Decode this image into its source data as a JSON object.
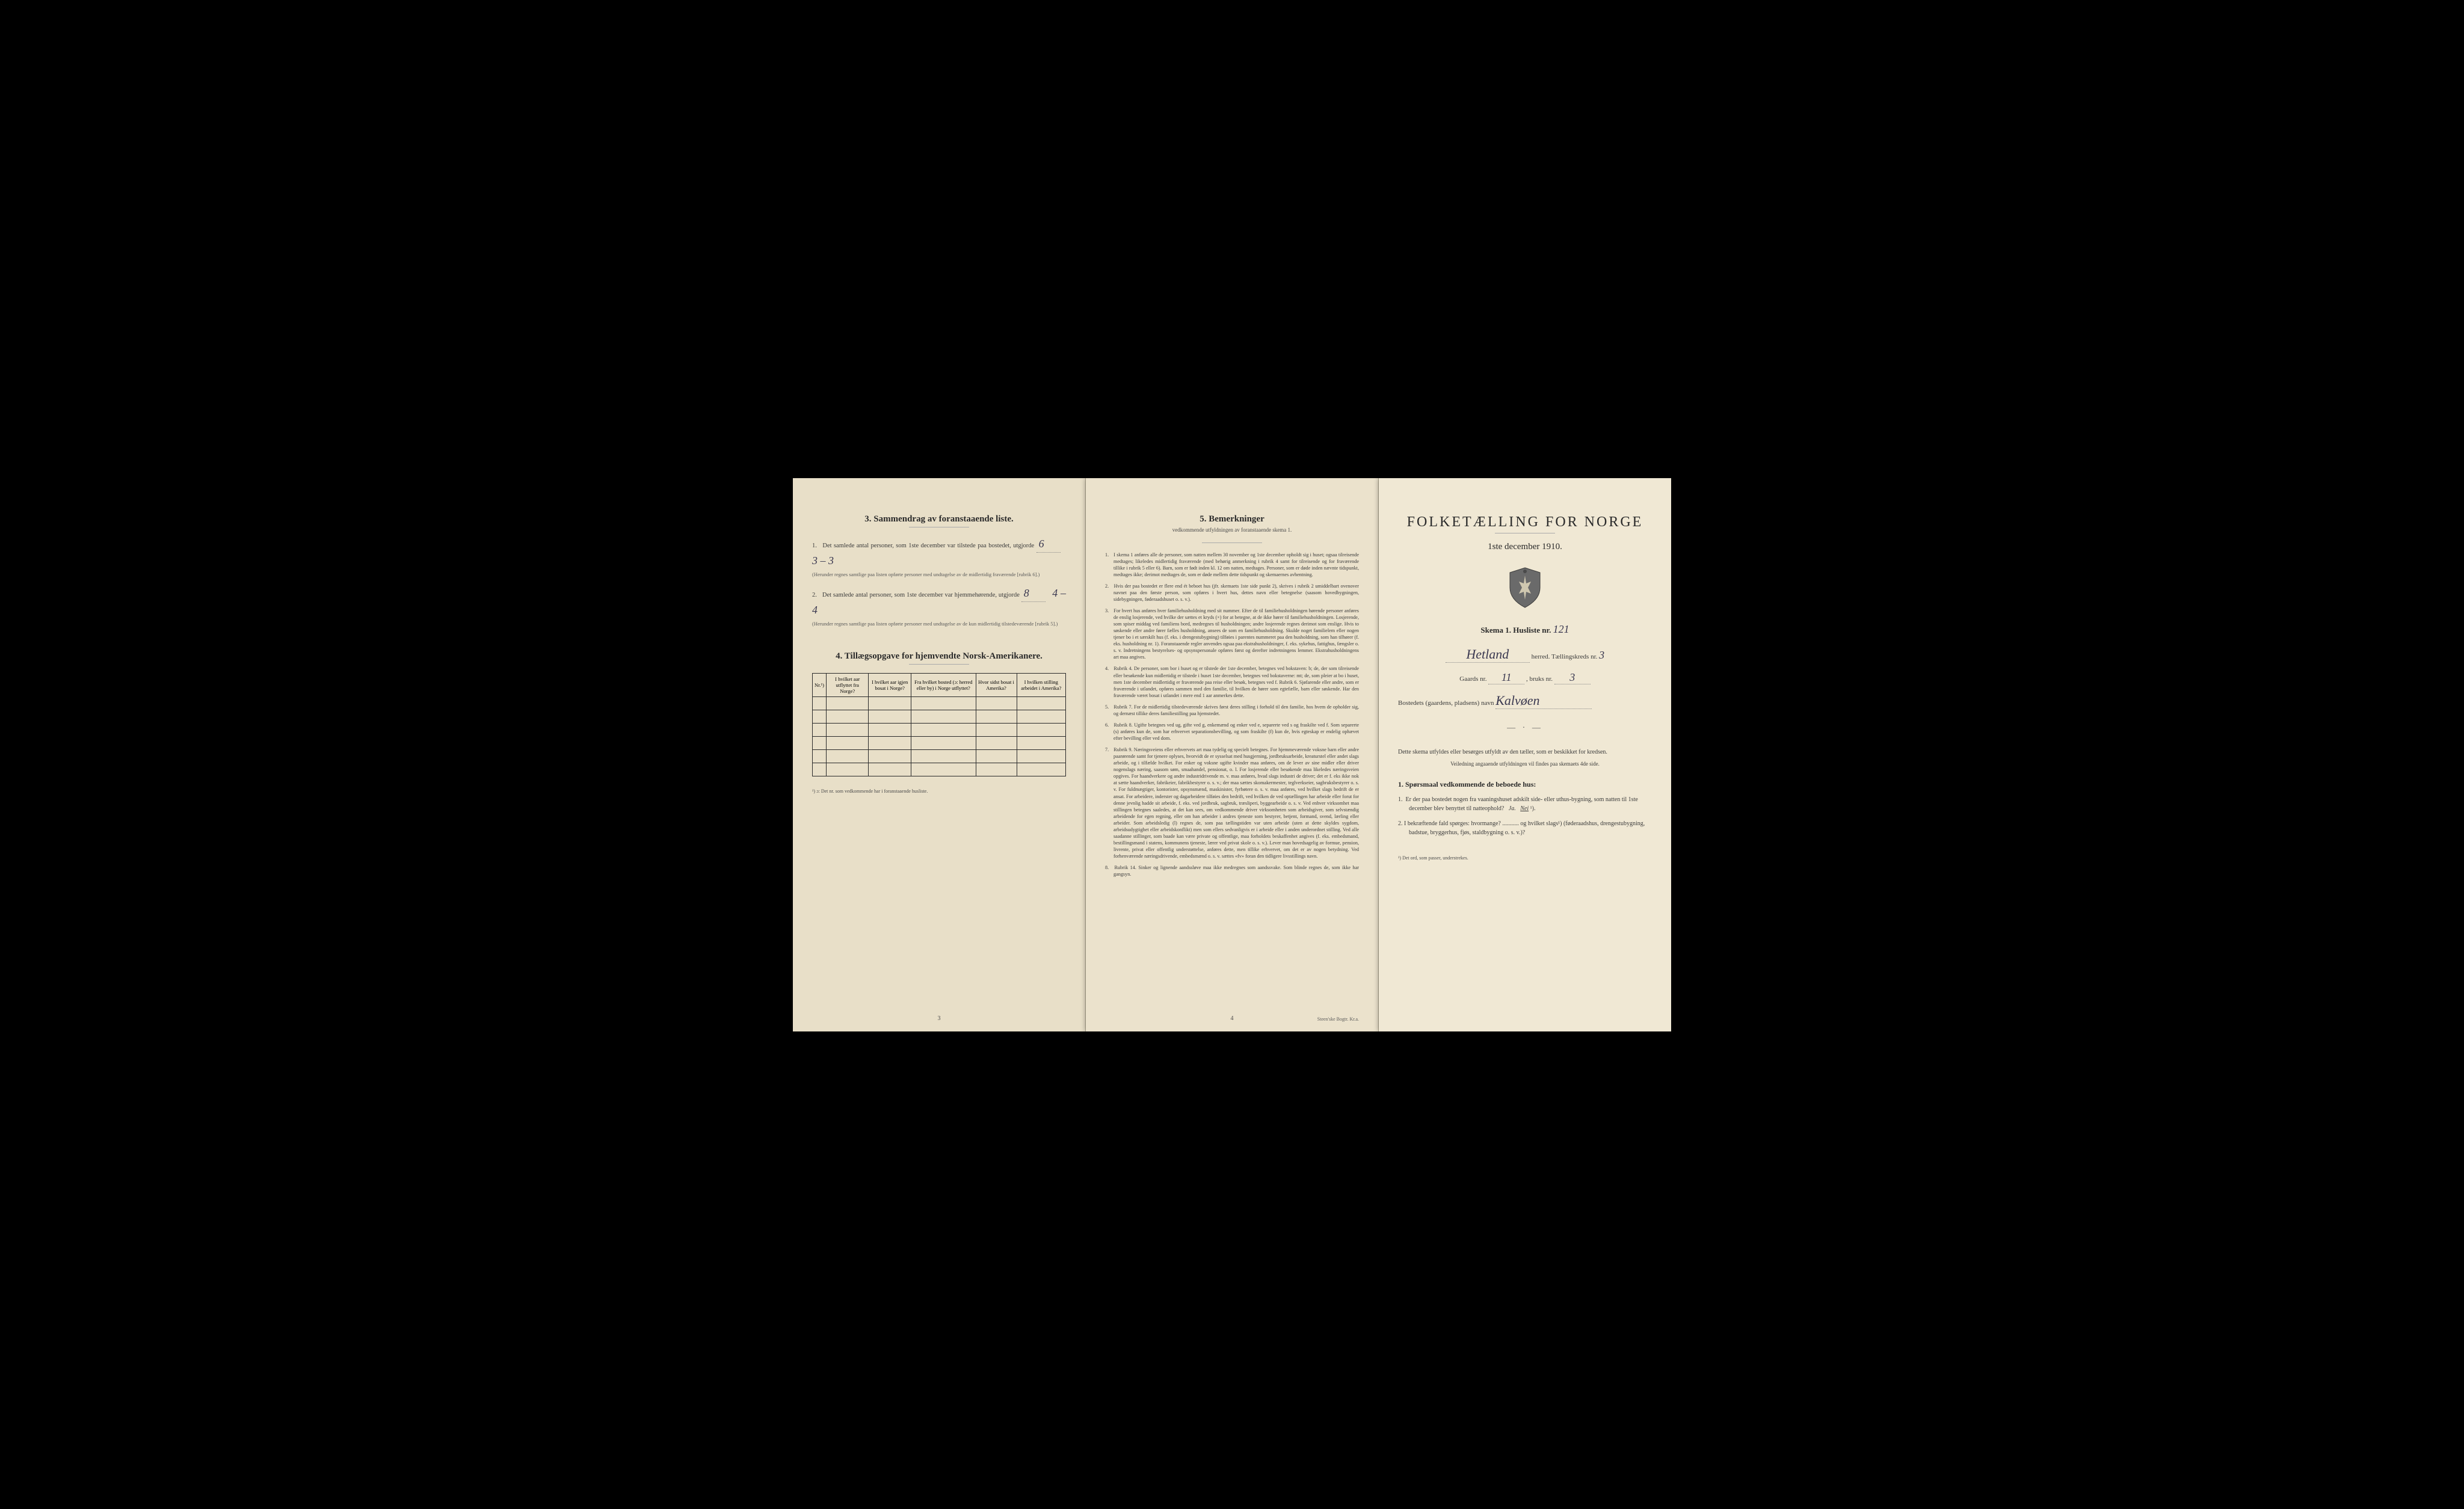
{
  "left": {
    "section3": {
      "title": "3.   Sammendrag av foranstaaende liste.",
      "item1_text": "Det samlede antal personer, som 1ste december var tilstede paa bostedet, utgjorde",
      "item1_value": "6",
      "item1_mf": "3 – 3",
      "item1_note": "(Herunder regnes samtlige paa listen opførte personer med undtagelse av de midlertidig fraværende [rubrik 6].)",
      "item2_text": "Det samlede antal personer, som 1ste december var hjemmehørende, utgjorde",
      "item2_value": "8",
      "item2_mf": "4 – 4",
      "item2_note": "(Herunder regnes samtlige paa listen opførte personer med undtagelse av de kun midlertidig tilstedeværende [rubrik 5].)"
    },
    "section4": {
      "title": "4.   Tillægsopgave for hjemvendte Norsk-Amerikanere.",
      "columns": [
        "Nr.¹)",
        "I hvilket aar utflyttet fra Norge?",
        "I hvilket aar igjen bosat i Norge?",
        "Fra hvilket bosted (ɔ: herred eller by) i Norge utflyttet?",
        "Hvor sidst bosat i Amerika?",
        "I hvilken stilling arbeidet i Amerika?"
      ],
      "empty_rows": 6,
      "footnote": "¹) ɔ: Det nr. som vedkommende har i foranstaaende husliste."
    },
    "page_num": "3"
  },
  "middle": {
    "title": "5.   Bemerkninger",
    "subtitle": "vedkommende utfyldningen av foranstaaende skema 1.",
    "items": [
      {
        "n": "1.",
        "text": "I skema 1 anføres alle de personer, som natten mellem 30 november og 1ste december opholdt sig i huset; ogsaa tilreisende medtages; likeledes midlertidig fraværende (med behørig anmerkning i rubrik 4 samt for tilreisende og for fraværende tillike i rubrik 5 eller 6). Barn, som er født inden kl. 12 om natten, medtages. Personer, som er døde inden nævnte tidspunkt, medtages ikke; derimot medtages de, som er døde mellem dette tidspunkt og skemaernes avhentning."
      },
      {
        "n": "2.",
        "text": "Hvis der paa bostedet er flere end ét beboet hus (jfr. skemaets 1ste side punkt 2), skrives i rubrik 2 umiddelbart ovenover navnet paa den første person, som opføres i hvert hus, dettes navn eller betegnelse (saasom hovedbygningen, sidebygningen, føderaadshuset o. s. v.)."
      },
      {
        "n": "3.",
        "text": "For hvert hus anføres hver familiehusholdning med sit nummer. Efter de til familiehusholdningen hørende personer anføres de enslig losjerende, ved hvilke der sættes et kryds (×) for at betegne, at de ikke hører til familiehusholdningen. Losjerende, som spiser middag ved familiens bord, medregnes til husholdningen; andre losjerende regnes derimot som enslige. Hvis to søskende eller andre fører fælles husholdning, ansees de som en familiehusholdning. Skulde noget familielem eller nogen tjener bo i et særskilt hus (f. eks. i drengestubygning) tilføies i parentes nummeret paa den husholdning, som han tilhører (f. eks. husholdning nr. 1).\nForanstaaende regler anvendes ogsaa paa ekstrahusholdninger, f. eks. sykehus, fattighus, fængsler o. s. v. Indretningens bestyrelses- og opsynspersonale opføres først og derefter indretningens lemmer. Ekstrahusholdningens art maa angives."
      },
      {
        "n": "4.",
        "text": "Rubrik 4. De personer, som bor i huset og er tilstede der 1ste december, betegnes ved bokstaven: b; de, der som tilreisende eller besøkende kun midlertidig er tilstede i huset 1ste december, betegnes ved bokstaverne: mt; de, som pleier at bo i huset, men 1ste december midlertidig er fraværende paa reise eller besøk, betegnes ved f.\nRubrik 6. Sjøfarende eller andre, som er fraværende i utlandet, opføres sammen med den familie, til hvilken de hører som egtefælle, barn eller søskende.\nHar den fraværende været bosat i utlandet i mere end 1 aar anmerkes dette."
      },
      {
        "n": "5.",
        "text": "Rubrik 7. For de midlertidig tilstedeværende skrives først deres stilling i forhold til den familie, hos hvem de opholder sig, og dernæst tillike deres familiestilling paa hjemstedet."
      },
      {
        "n": "6.",
        "text": "Rubrik 8. Ugifte betegnes ved ug, gifte ved g, enkemænd og enker ved e, separerte ved s og fraskilte ved f. Som separerte (s) anføres kun de, som har erhvervet separationsbevilling, og som fraskilte (f) kun de, hvis egteskap er endelig ophævet efter bevilling eller ved dom."
      },
      {
        "n": "7.",
        "text": "Rubrik 9. Næringsveiens eller erhvervets art maa tydelig og specielt betegnes.\nFor hjemmeværende voksne barn eller andre paarørende samt for tjenere oplyses, hvorvidt de er sysselsat med husgjerning, jordbruksarbeide, kreaturstel eller andet slags arbeide, og i tilfælde hvilket. For enker og voksne ugifte kvinder maa anføres, om de lever av sine midler eller driver nogenslags næring, saasom søm, smaahandel, pensionat, o. l.\nFor losjerende eller besøkende maa likeledes næringsveien opgives.\nFor haandverkere og andre industridrivende m. v. maa anføres, hvad slags industri de driver; det er f. eks ikke nok at sætte haandverker, fabrikeier, fabrikbestyrer o. s. v.; der maa sættes skomakermester, teglverkseier, sagbruksbestyrer o. s. v.\nFor fuldmægtiger, kontorister, opsynsmænd, maskinister, fyrbøtere o. s. v. maa anføres, ved hvilket slags bedrift de er ansat.\nFor arbeidere, inderster og dagarbeidere tilføies den bedrift, ved hvilken de ved optællingen har arbeide eller forut for denne jevnlig hadde sit arbeide, f. eks. ved jordbruk, sagbruk, træsliperi, byggearbeide o. s. v.\nVed enhver virksomhet maa stillingen betegnes saaledes, at det kan sees, om vedkommende driver virksomheten som arbeidsgiver, som selvstændig arbeidende for egen regning, eller om han arbeider i andres tjeneste som bestyrer, betjent, formand, svend, lærling eller arbeider.\nSom arbeidsledig (l) regnes de, som paa tællingstiden var uten arbeide (uten at dette skyldes sygdom, arbeidsudygtighet eller arbeidskonflikt) men som ellers sedvanligvis er i arbeide eller i anden underordnet stilling.\nVed alle saadanne stillinger, som baade kan være private og offentlige, maa forholdets beskaffenhet angives (f. eks. embedsmand, bestillingsmand i statens, kommunens tjeneste, lærer ved privat skole o. s. v.).\nLever man hovedsagelig av formue, pension, livrente, privat eller offentlig understøttelse, anføres dette, men tillike erhvervet, om det er av nogen betydning.\nVed forhenværende næringsdrivende, embedsmænd o. s. v. sættes «fv» foran den tidligere livsstillings navn."
      },
      {
        "n": "8.",
        "text": "Rubrik 14. Sinker og lignende aandssløve maa ikke medregnes som aandssvake.\nSom blinde regnes de, som ikke har gangsyn."
      }
    ],
    "page_num": "4",
    "printer": "Steen'ske Bogtr.  Kr.a."
  },
  "right": {
    "main_title": "FOLKETÆLLING FOR NORGE",
    "main_date": "1ste december 1910.",
    "skema_label": "Skema 1.   Husliste nr.",
    "husliste_nr": "121",
    "herred_value": "Hetland",
    "herred_label": "herred.   Tællingskreds nr.",
    "kreds_nr": "3",
    "gaard_label": "Gaards nr.",
    "gaard_nr": "11",
    "bruks_label": ", bruks nr.",
    "bruks_nr": "3",
    "bosted_label": "Bostedets (gaardens, pladsens) navn",
    "bosted_value": "Kalvøen",
    "instruction1": "Dette skema utfyldes eller besørges utfyldt av den tæller, som er beskikket for kredsen.",
    "instruction2": "Veiledning angaaende utfyldningen vil findes paa skemaets 4de side.",
    "q_heading": "1.  Spørsmaal vedkommende de beboede hus:",
    "q1": "1.  Er der paa bostedet nogen fra vaaningshuset adskilt side- eller uthus-bygning, som natten til 1ste december blev benyttet til natteophold?   Ja.   Nei ¹).",
    "q1_answer_underlined": "Nei",
    "q2": "2.  I bekræftende fald spørges: hvormange? ........... og hvilket slags¹) (føderaadshus, drengestubygning, badstue, bryggerhus, fjøs, staldbygning o. s. v.)?",
    "footnote": "¹) Det ord, som passer, understrekes."
  }
}
